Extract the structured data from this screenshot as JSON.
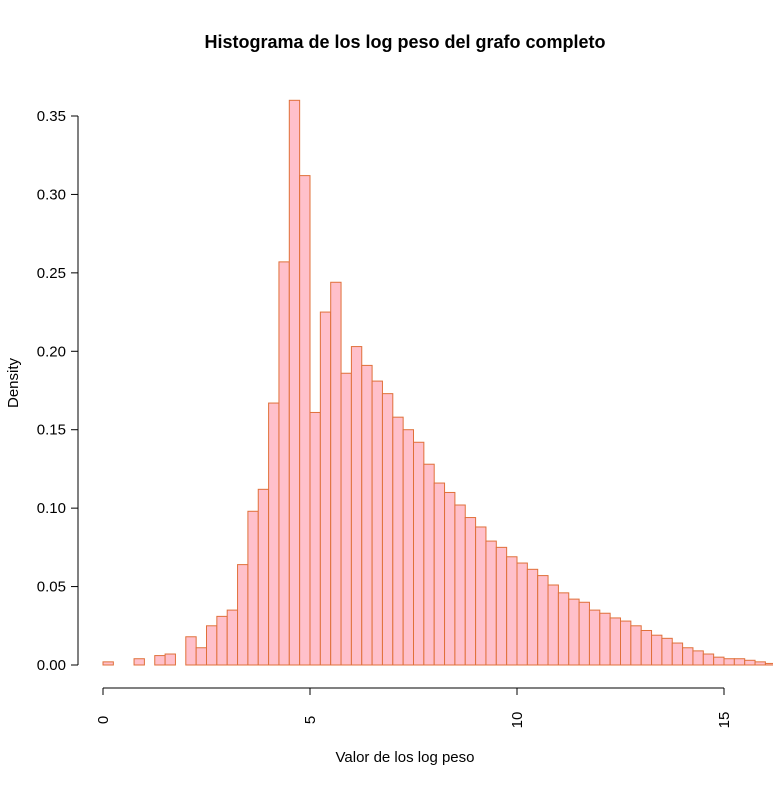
{
  "chart_data": {
    "type": "bar",
    "title": "Histograma de los log peso del grafo completo",
    "xlabel": "Valor de los log peso",
    "ylabel": "Density",
    "xlim": [
      0,
      15
    ],
    "ylim": [
      0,
      0.35
    ],
    "x_ticks": [
      "0",
      "5",
      "10",
      "15"
    ],
    "y_ticks": [
      "0.00",
      "0.05",
      "0.10",
      "0.15",
      "0.20",
      "0.25",
      "0.30",
      "0.35"
    ],
    "bin_width": 0.25,
    "bin_start": 0,
    "values": [
      0.002,
      0.0,
      0.0,
      0.004,
      0.0,
      0.006,
      0.007,
      0.0,
      0.018,
      0.011,
      0.025,
      0.031,
      0.035,
      0.064,
      0.098,
      0.112,
      0.167,
      0.257,
      0.36,
      0.312,
      0.161,
      0.225,
      0.244,
      0.186,
      0.203,
      0.191,
      0.181,
      0.173,
      0.158,
      0.15,
      0.142,
      0.128,
      0.116,
      0.11,
      0.102,
      0.094,
      0.088,
      0.079,
      0.075,
      0.069,
      0.065,
      0.061,
      0.057,
      0.051,
      0.046,
      0.042,
      0.04,
      0.035,
      0.033,
      0.03,
      0.028,
      0.025,
      0.022,
      0.019,
      0.017,
      0.014,
      0.011,
      0.009,
      0.007,
      0.005,
      0.004,
      0.004,
      0.003,
      0.002,
      0.001,
      0.001,
      0.0,
      0.0,
      0.0,
      0.0,
      0.0,
      0.0,
      0.0,
      0.0
    ],
    "colors": {
      "fill": "#ffc0cb",
      "border": "#e0703a"
    },
    "grid": false,
    "legend": "none"
  }
}
